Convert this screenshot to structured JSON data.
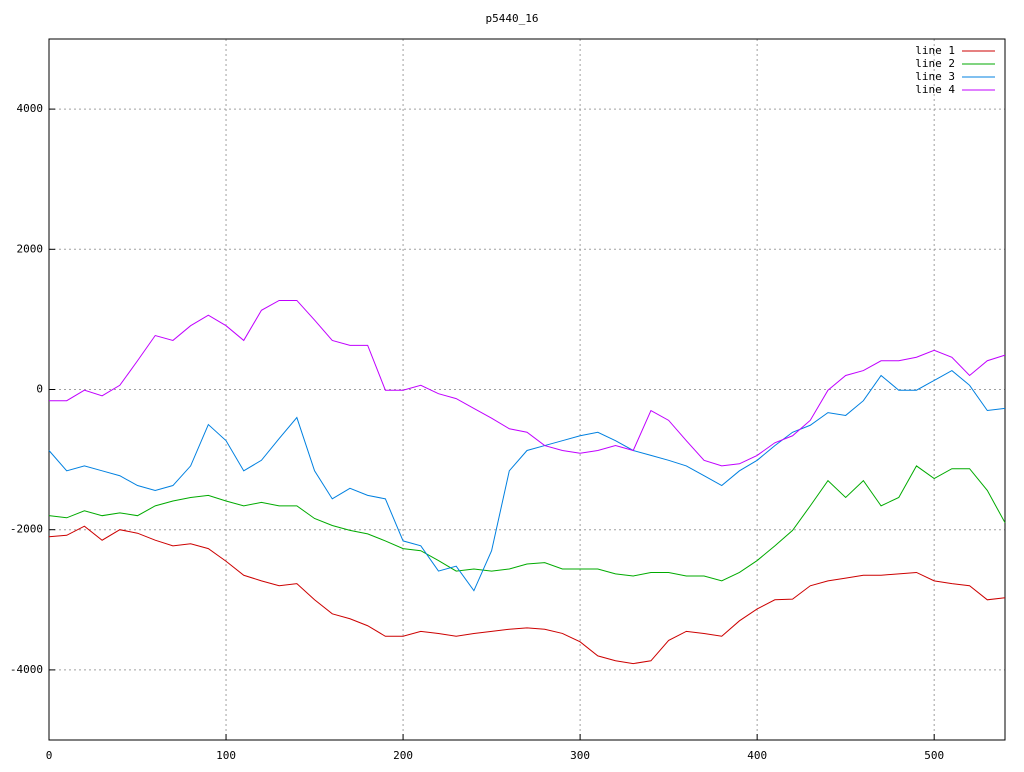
{
  "chart_data": {
    "type": "line",
    "title": "p5440_16",
    "x": [
      0,
      10,
      20,
      30,
      40,
      50,
      60,
      70,
      80,
      90,
      100,
      110,
      120,
      130,
      140,
      150,
      160,
      170,
      180,
      190,
      200,
      210,
      220,
      230,
      240,
      250,
      260,
      270,
      280,
      290,
      300,
      310,
      320,
      330,
      340,
      350,
      360,
      370,
      380,
      390,
      400,
      410,
      420,
      430,
      440,
      450,
      460,
      470,
      480,
      490,
      500,
      510,
      520,
      530,
      540
    ],
    "series": [
      {
        "name": "line 1",
        "color": "#cc0000",
        "values": [
          -2100,
          -2080,
          -1950,
          -2150,
          -2000,
          -2050,
          -2150,
          -2230,
          -2200,
          -2270,
          -2450,
          -2650,
          -2730,
          -2800,
          -2770,
          -3000,
          -3200,
          -3270,
          -3370,
          -3520,
          -3520,
          -3450,
          -3480,
          -3520,
          -3480,
          -3450,
          -3420,
          -3400,
          -3420,
          -3480,
          -3600,
          -3800,
          -3870,
          -3910,
          -3870,
          -3580,
          -3450,
          -3480,
          -3520,
          -3300,
          -3130,
          -3000,
          -2990,
          -2800,
          -2730,
          -2690,
          -2650,
          -2650,
          -2630,
          -2610,
          -2730,
          -2770,
          -2800,
          -3000,
          -2970
        ]
      },
      {
        "name": "line 2",
        "color": "#00aa00",
        "values": [
          -1800,
          -1830,
          -1730,
          -1800,
          -1760,
          -1800,
          -1660,
          -1590,
          -1540,
          -1510,
          -1590,
          -1660,
          -1610,
          -1660,
          -1660,
          -1840,
          -1940,
          -2010,
          -2060,
          -2160,
          -2270,
          -2300,
          -2440,
          -2590,
          -2560,
          -2590,
          -2560,
          -2490,
          -2470,
          -2560,
          -2560,
          -2560,
          -2630,
          -2660,
          -2610,
          -2610,
          -2660,
          -2660,
          -2730,
          -2610,
          -2440,
          -2230,
          -2010,
          -1660,
          -1300,
          -1540,
          -1300,
          -1660,
          -1540,
          -1090,
          -1270,
          -1130,
          -1130,
          -1440,
          -1900
        ]
      },
      {
        "name": "line 3",
        "color": "#0080e0",
        "values": [
          -870,
          -1160,
          -1090,
          -1160,
          -1230,
          -1370,
          -1440,
          -1370,
          -1090,
          -500,
          -730,
          -1160,
          -1010,
          -700,
          -400,
          -1160,
          -1560,
          -1410,
          -1510,
          -1560,
          -2160,
          -2230,
          -2590,
          -2520,
          -2870,
          -2300,
          -1160,
          -870,
          -800,
          -730,
          -660,
          -610,
          -730,
          -870,
          -940,
          -1010,
          -1090,
          -1230,
          -1370,
          -1160,
          -1010,
          -800,
          -610,
          -510,
          -330,
          -370,
          -160,
          200,
          -10,
          -10,
          130,
          270,
          60,
          -300,
          -270
        ]
      },
      {
        "name": "line 4",
        "color": "#c000ff",
        "values": [
          -160,
          -160,
          -10,
          -90,
          60,
          410,
          770,
          700,
          910,
          1060,
          910,
          700,
          1130,
          1270,
          1270,
          990,
          700,
          630,
          630,
          -10,
          -10,
          60,
          -60,
          -130,
          -270,
          -410,
          -560,
          -610,
          -800,
          -870,
          -910,
          -870,
          -800,
          -870,
          -300,
          -440,
          -730,
          -1010,
          -1090,
          -1060,
          -940,
          -760,
          -660,
          -440,
          -10,
          200,
          270,
          410,
          410,
          460,
          560,
          460,
          200,
          410,
          490
        ]
      }
    ],
    "xlim": [
      0,
      540
    ],
    "ylim": [
      -5000,
      5000
    ],
    "xticks": [
      0,
      100,
      200,
      300,
      400,
      500
    ],
    "yticks": [
      -4000,
      -2000,
      0,
      2000,
      4000
    ],
    "grid": true,
    "legend": "top-right"
  }
}
